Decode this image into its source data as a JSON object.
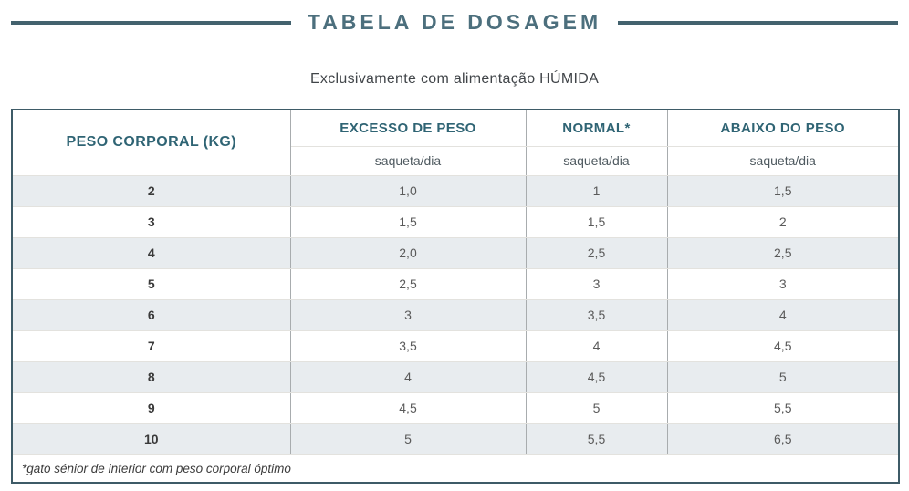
{
  "page": {
    "title": "TABELA DE DOSAGEM",
    "subtitle": "Exclusivamente com alimentação HÚMIDA"
  },
  "table": {
    "weight_header": "PESO CORPORAL (KG)",
    "columns": [
      {
        "label": "EXCESSO DE PESO",
        "unit": "saqueta/dia"
      },
      {
        "label": "NORMAL*",
        "unit": "saqueta/dia"
      },
      {
        "label": "ABAIXO DO PESO",
        "unit": "saqueta/dia"
      }
    ],
    "rows": [
      {
        "weight": "2",
        "values": [
          "1,0",
          "1",
          "1,5"
        ]
      },
      {
        "weight": "3",
        "values": [
          "1,5",
          "1,5",
          "2"
        ]
      },
      {
        "weight": "4",
        "values": [
          "2,0",
          "2,5",
          "2,5"
        ]
      },
      {
        "weight": "5",
        "values": [
          "2,5",
          "3",
          "3"
        ]
      },
      {
        "weight": "6",
        "values": [
          "3",
          "3,5",
          "4"
        ]
      },
      {
        "weight": "7",
        "values": [
          "3,5",
          "4",
          "4,5"
        ]
      },
      {
        "weight": "8",
        "values": [
          "4",
          "4,5",
          "5"
        ]
      },
      {
        "weight": "9",
        "values": [
          "4,5",
          "5",
          "5,5"
        ]
      },
      {
        "weight": "10",
        "values": [
          "5",
          "5,5",
          "6,5"
        ]
      }
    ],
    "footnote": "*gato sénior de interior com peso corporal óptimo"
  },
  "colors": {
    "accent_border": "#3e5b67",
    "title_text": "#4c6f7d",
    "header_text": "#2f6474",
    "stripe": "#e8ecef"
  }
}
